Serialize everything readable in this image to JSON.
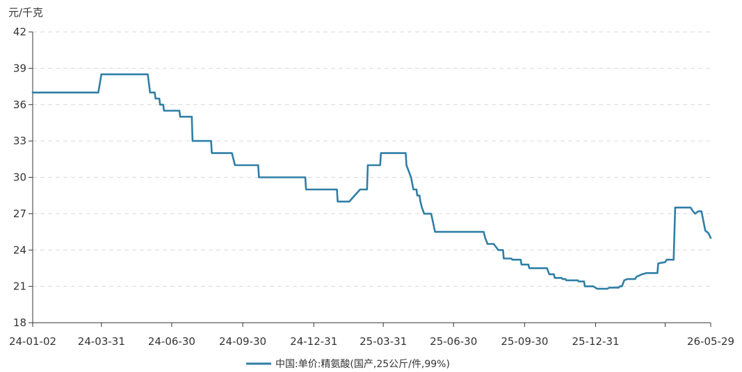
{
  "chart_data": {
    "type": "line",
    "title": "",
    "ylabel": "元/千克",
    "xlabel": "",
    "ylim": [
      18,
      42
    ],
    "yticks": [
      18,
      21,
      24,
      27,
      30,
      33,
      36,
      39,
      42
    ],
    "xlim": [
      "2024-01-02",
      "2026-05-29"
    ],
    "xticks": [
      {
        "date": "2024-01-02",
        "label": "24-01-02"
      },
      {
        "date": "2024-03-31",
        "label": "24-03-31"
      },
      {
        "date": "2024-06-30",
        "label": "24-06-30"
      },
      {
        "date": "2024-09-30",
        "label": "24-09-30"
      },
      {
        "date": "2024-12-31",
        "label": "24-12-31"
      },
      {
        "date": "2025-03-31",
        "label": "25-03-31"
      },
      {
        "date": "2025-06-30",
        "label": "25-06-30"
      },
      {
        "date": "2025-09-30",
        "label": "25-09-30"
      },
      {
        "date": "2025-12-31",
        "label": "25-12-31"
      },
      {
        "date": "2026-03-31",
        "label": ""
      },
      {
        "date": "2026-05-29",
        "label": "26-05-29"
      }
    ],
    "grid": "horizontal-dashed",
    "legend_position": "bottom",
    "series": [
      {
        "name": "中国:单价:精氨酸(国产,25公斤/件,99%)",
        "color": "#2e7ea6",
        "points": [
          [
            "2024-01-02",
            37.0
          ],
          [
            "2024-03-27",
            37.0
          ],
          [
            "2024-03-31",
            38.5
          ],
          [
            "2024-05-30",
            38.5
          ],
          [
            "2024-06-02",
            37.0
          ],
          [
            "2024-06-08",
            37.0
          ],
          [
            "2024-06-09",
            36.5
          ],
          [
            "2024-06-14",
            36.5
          ],
          [
            "2024-06-15",
            36.0
          ],
          [
            "2024-06-19",
            36.0
          ],
          [
            "2024-06-20",
            35.5
          ],
          [
            "2024-07-10",
            35.5
          ],
          [
            "2024-07-11",
            35.0
          ],
          [
            "2024-07-26",
            35.0
          ],
          [
            "2024-07-27",
            33.0
          ],
          [
            "2024-08-20",
            33.0
          ],
          [
            "2024-08-21",
            32.0
          ],
          [
            "2024-09-16",
            32.0
          ],
          [
            "2024-09-20",
            31.0
          ],
          [
            "2024-10-20",
            31.0
          ],
          [
            "2024-10-21",
            30.0
          ],
          [
            "2024-12-20",
            30.0
          ],
          [
            "2024-12-21",
            29.0
          ],
          [
            "2025-01-30",
            29.0
          ],
          [
            "2025-01-31",
            28.0
          ],
          [
            "2025-02-15",
            28.0
          ],
          [
            "2025-03-01",
            29.0
          ],
          [
            "2025-03-10",
            29.0
          ],
          [
            "2025-03-11",
            31.0
          ],
          [
            "2025-03-27",
            31.0
          ],
          [
            "2025-03-28",
            32.0
          ],
          [
            "2025-04-29",
            32.0
          ],
          [
            "2025-04-30",
            31.0
          ],
          [
            "2025-05-03",
            30.5
          ],
          [
            "2025-05-06",
            30.0
          ],
          [
            "2025-05-09",
            29.0
          ],
          [
            "2025-05-13",
            29.0
          ],
          [
            "2025-05-14",
            28.5
          ],
          [
            "2025-05-17",
            28.5
          ],
          [
            "2025-05-18",
            28.0
          ],
          [
            "2025-05-20",
            27.5
          ],
          [
            "2025-05-23",
            27.0
          ],
          [
            "2025-06-01",
            27.0
          ],
          [
            "2025-06-06",
            25.5
          ],
          [
            "2025-08-08",
            25.5
          ],
          [
            "2025-08-10",
            25.0
          ],
          [
            "2025-08-13",
            24.5
          ],
          [
            "2025-08-21",
            24.5
          ],
          [
            "2025-08-27",
            24.0
          ],
          [
            "2025-09-02",
            24.0
          ],
          [
            "2025-09-03",
            23.3
          ],
          [
            "2025-09-13",
            23.3
          ],
          [
            "2025-09-14",
            23.2
          ],
          [
            "2025-09-25",
            23.2
          ],
          [
            "2025-09-26",
            22.8
          ],
          [
            "2025-10-05",
            22.8
          ],
          [
            "2025-10-06",
            22.5
          ],
          [
            "2025-10-29",
            22.5
          ],
          [
            "2025-11-01",
            22.0
          ],
          [
            "2025-11-07",
            22.0
          ],
          [
            "2025-11-08",
            21.7
          ],
          [
            "2025-11-17",
            21.7
          ],
          [
            "2025-11-18",
            21.6
          ],
          [
            "2025-11-22",
            21.6
          ],
          [
            "2025-11-23",
            21.5
          ],
          [
            "2025-12-08",
            21.5
          ],
          [
            "2025-12-09",
            21.4
          ],
          [
            "2025-12-16",
            21.4
          ],
          [
            "2025-12-17",
            21.0
          ],
          [
            "2025-12-28",
            21.0
          ],
          [
            "2026-01-02",
            20.8
          ],
          [
            "2026-01-15",
            20.8
          ],
          [
            "2026-01-18",
            20.9
          ],
          [
            "2026-01-30",
            20.9
          ],
          [
            "2026-01-31",
            21.0
          ],
          [
            "2026-02-03",
            21.0
          ],
          [
            "2026-02-06",
            21.5
          ],
          [
            "2026-02-10",
            21.6
          ],
          [
            "2026-02-20",
            21.6
          ],
          [
            "2026-02-22",
            21.8
          ],
          [
            "2026-03-01",
            22.0
          ],
          [
            "2026-03-07",
            22.1
          ],
          [
            "2026-03-21",
            22.1
          ],
          [
            "2026-03-22",
            22.9
          ],
          [
            "2026-03-31",
            23.0
          ],
          [
            "2026-04-02",
            23.2
          ],
          [
            "2026-04-11",
            23.2
          ],
          [
            "2026-04-13",
            27.5
          ],
          [
            "2026-05-03",
            27.5
          ],
          [
            "2026-05-06",
            27.2
          ],
          [
            "2026-05-09",
            27.0
          ],
          [
            "2026-05-13",
            27.2
          ],
          [
            "2026-05-17",
            27.2
          ],
          [
            "2026-05-22",
            25.6
          ],
          [
            "2026-05-26",
            25.4
          ],
          [
            "2026-05-29",
            25.0
          ]
        ]
      }
    ]
  }
}
